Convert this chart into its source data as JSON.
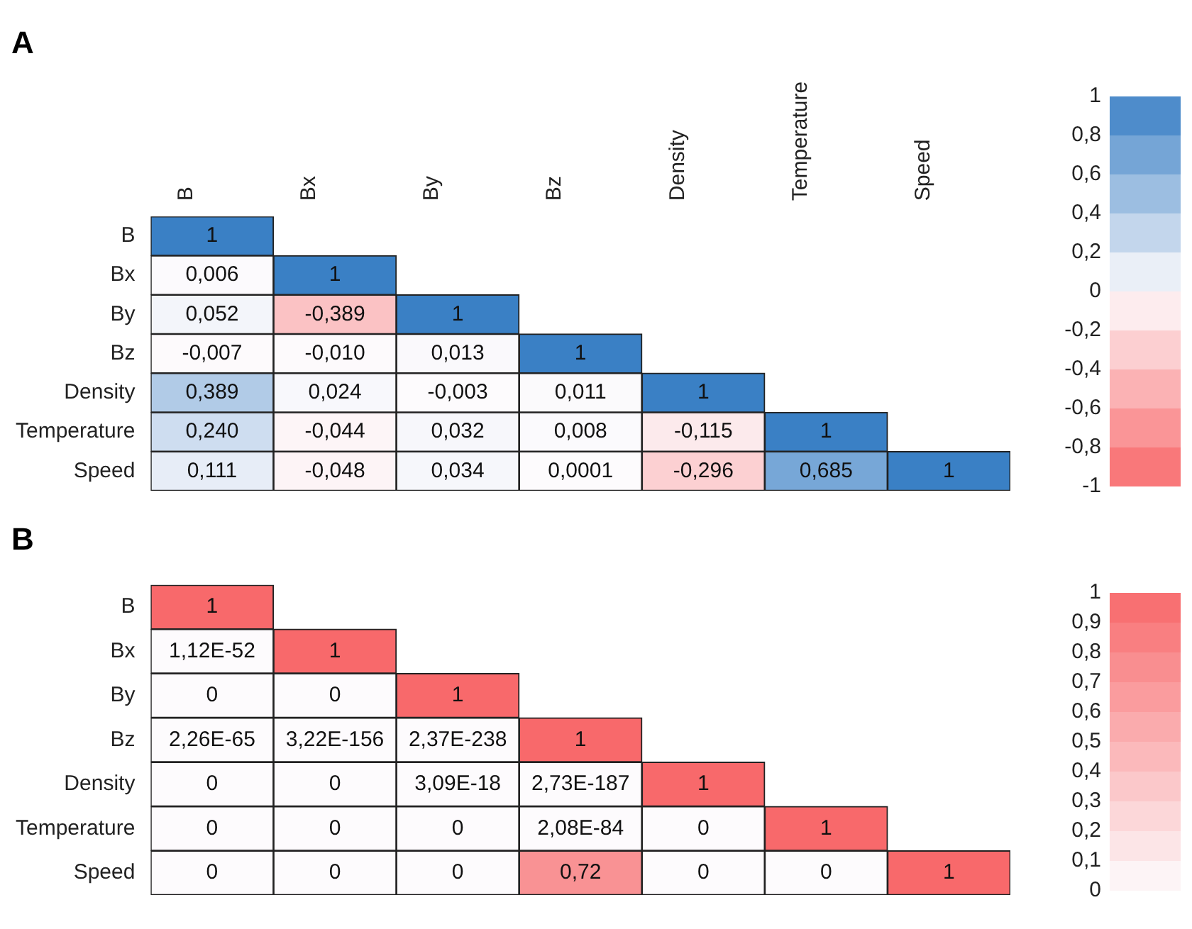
{
  "chart_data": [
    {
      "type": "heatmap",
      "title": "A",
      "categories": [
        "B",
        "Bx",
        "By",
        "Bz",
        "Density",
        "Temperature",
        "Speed"
      ],
      "y_categories": [
        "B",
        "Bx",
        "By",
        "Bz",
        "Density",
        "Temperature",
        "Speed"
      ],
      "cells": [
        [
          1,
          null,
          null,
          null,
          null,
          null,
          null
        ],
        [
          0.006,
          1,
          null,
          null,
          null,
          null,
          null
        ],
        [
          0.052,
          -0.389,
          1,
          null,
          null,
          null,
          null
        ],
        [
          -0.007,
          -0.01,
          0.013,
          1,
          null,
          null,
          null
        ],
        [
          0.389,
          0.024,
          -0.003,
          0.011,
          1,
          null,
          null
        ],
        [
          0.24,
          -0.044,
          0.032,
          0.008,
          -0.115,
          1,
          null
        ],
        [
          0.111,
          -0.048,
          0.034,
          0.0001,
          -0.296,
          0.685,
          1
        ]
      ],
      "cell_labels": [
        [
          "1",
          null,
          null,
          null,
          null,
          null,
          null
        ],
        [
          "0,006",
          "1",
          null,
          null,
          null,
          null,
          null
        ],
        [
          "0,052",
          "-0,389",
          "1",
          null,
          null,
          null,
          null
        ],
        [
          "-0,007",
          "-0,010",
          "0,013",
          "1",
          null,
          null,
          null
        ],
        [
          "0,389",
          "0,024",
          "-0,003",
          "0,011",
          "1",
          null,
          null
        ],
        [
          "0,240",
          "-0,044",
          "0,032",
          "0,008",
          "-0,115",
          "1",
          null
        ],
        [
          "0,111",
          "-0,048",
          "0,034",
          "0,0001",
          "-0,296",
          "0,685",
          "1"
        ]
      ],
      "clim": [
        -1,
        1
      ],
      "cticks": [
        1,
        {
          "value": 0.8,
          "label": "0,8"
        },
        {
          "value": 0.6,
          "label": "0,6"
        },
        {
          "value": 0.4,
          "label": "0,4"
        },
        {
          "value": 0.2,
          "label": "0,2"
        },
        0,
        {
          "value": -0.2,
          "label": "-0,2"
        },
        {
          "value": -0.4,
          "label": "-0,4"
        },
        {
          "value": -0.6,
          "label": "-0,6"
        },
        {
          "value": -0.8,
          "label": "-0,8"
        },
        -1
      ]
    },
    {
      "type": "heatmap",
      "title": "B",
      "categories": [
        null,
        null,
        null,
        null,
        null,
        null,
        null
      ],
      "y_categories": [
        "B",
        "Bx",
        "By",
        "Bz",
        "Density",
        "Temperature",
        "Speed"
      ],
      "tick_labels": "y",
      "cells": [
        [
          1,
          null,
          null,
          null,
          null,
          null,
          null
        ],
        [
          1.12e-52,
          1,
          null,
          null,
          null,
          null,
          null
        ],
        [
          0,
          0,
          1,
          null,
          null,
          null,
          null
        ],
        [
          2.26e-65,
          3.22e-156,
          2.37e-238,
          1,
          null,
          null,
          null
        ],
        [
          0,
          0,
          3.09e-18,
          2.73e-187,
          1,
          null,
          null
        ],
        [
          0,
          0,
          0,
          2.08e-84,
          0,
          1,
          null
        ],
        [
          0,
          0,
          0,
          0.72,
          0,
          0,
          1
        ]
      ],
      "cell_labels": [
        [
          "1",
          null,
          null,
          null,
          null,
          null,
          null
        ],
        [
          "1,12E-52",
          "1",
          null,
          null,
          null,
          null,
          null
        ],
        [
          "0",
          "0",
          "1",
          null,
          null,
          null,
          null
        ],
        [
          "2,26E-65",
          "3,22E-156",
          "2,37E-238",
          "1",
          null,
          null,
          null
        ],
        [
          "0",
          "0",
          "3,09E-18",
          "2,73E-187",
          "1",
          null,
          null
        ],
        [
          "0",
          "0",
          "0",
          "2,08E-84",
          "0",
          "1",
          null
        ],
        [
          "0",
          "0",
          "0",
          "0,72",
          "0",
          "0",
          "1"
        ]
      ],
      "clim": [
        0,
        1
      ],
      "cticks": [
        1,
        {
          "value": 0.9,
          "label": "0,9"
        },
        {
          "value": 0.8,
          "label": "0,8"
        },
        {
          "value": 0.7,
          "label": "0,7"
        },
        {
          "value": 0.6,
          "label": "0,6"
        },
        {
          "value": 0.5,
          "label": "0,5"
        },
        {
          "value": 0.4,
          "label": "0,4"
        },
        {
          "value": 0.3,
          "label": "0,3"
        },
        {
          "value": 0.2,
          "label": "0,2"
        },
        {
          "value": 0.1,
          "label": "0,1"
        },
        0
      ]
    }
  ]
}
